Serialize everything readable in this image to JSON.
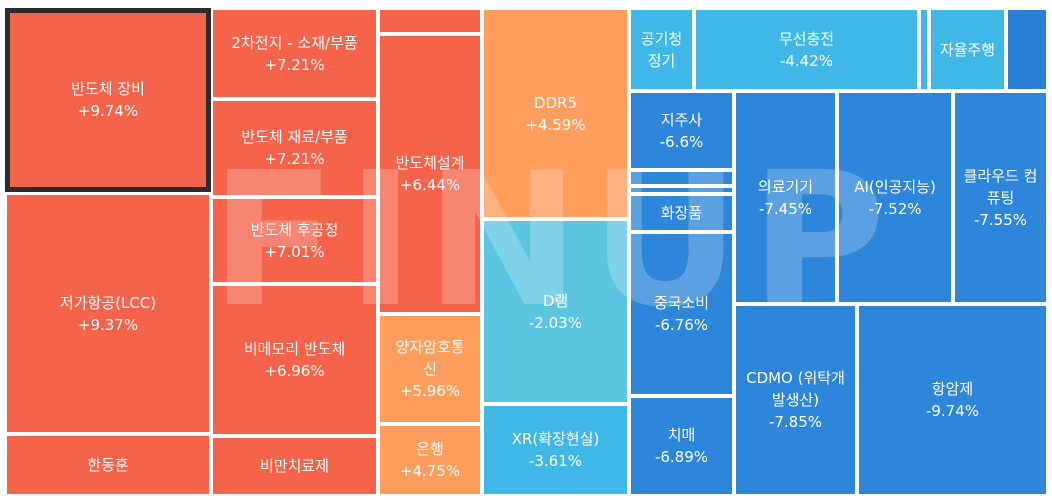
{
  "tiles": [
    {
      "name": "반도체 장비",
      "change": "+9.74%"
    },
    {
      "name": "저가항공(LCC)",
      "change": "+9.37%"
    },
    {
      "name": "한동훈",
      "change": ""
    },
    {
      "name": "2차전지 - 소재/부품",
      "change": "+7.21%"
    },
    {
      "name": "반도체 재료/부품",
      "change": "+7.21%"
    },
    {
      "name": "반도체 후공정",
      "change": "+7.01%"
    },
    {
      "name": "비메모리 반도체",
      "change": "+6.96%"
    },
    {
      "name": "비만치료제",
      "change": ""
    },
    {
      "name": "",
      "change": ""
    },
    {
      "name": "반도체설계",
      "change": "+6.44%"
    },
    {
      "name": "양자암호통신",
      "change": "+5.96%"
    },
    {
      "name": "은행",
      "change": "+4.75%"
    },
    {
      "name": "DDR5",
      "change": "+4.59%"
    },
    {
      "name": "D램",
      "change": "-2.03%"
    },
    {
      "name": "XR(확장현실)",
      "change": "-3.61%"
    },
    {
      "name": "공기청정기",
      "change": ""
    },
    {
      "name": "무선충전",
      "change": "-4.42%"
    },
    {
      "name": "",
      "change": ""
    },
    {
      "name": "자율주행",
      "change": ""
    },
    {
      "name": "",
      "change": ""
    },
    {
      "name": "지주사",
      "change": "-6.6%"
    },
    {
      "name": "",
      "change": ""
    },
    {
      "name": "",
      "change": ""
    },
    {
      "name": "화장품",
      "change": ""
    },
    {
      "name": "중국소비",
      "change": "-6.76%"
    },
    {
      "name": "치매",
      "change": "-6.89%"
    },
    {
      "name": "의료기기",
      "change": "-7.45%"
    },
    {
      "name": "AI(인공지능)",
      "change": "-7.52%"
    },
    {
      "name": "클라우드 컴퓨팅",
      "change": "-7.55%"
    },
    {
      "name": "CDMO (위탁개발생산)",
      "change": "-7.85%"
    },
    {
      "name": "항암제",
      "change": "-9.74%"
    }
  ],
  "watermark": "FINUP",
  "colors": {
    "strong_up": "#f4634a",
    "mild_up": "#ff9d5c",
    "mild_down": "#5cc6e0",
    "down": "#3fb8e8",
    "strong_down": "#2d86d9",
    "selected_border": "#2b2b2b"
  }
}
